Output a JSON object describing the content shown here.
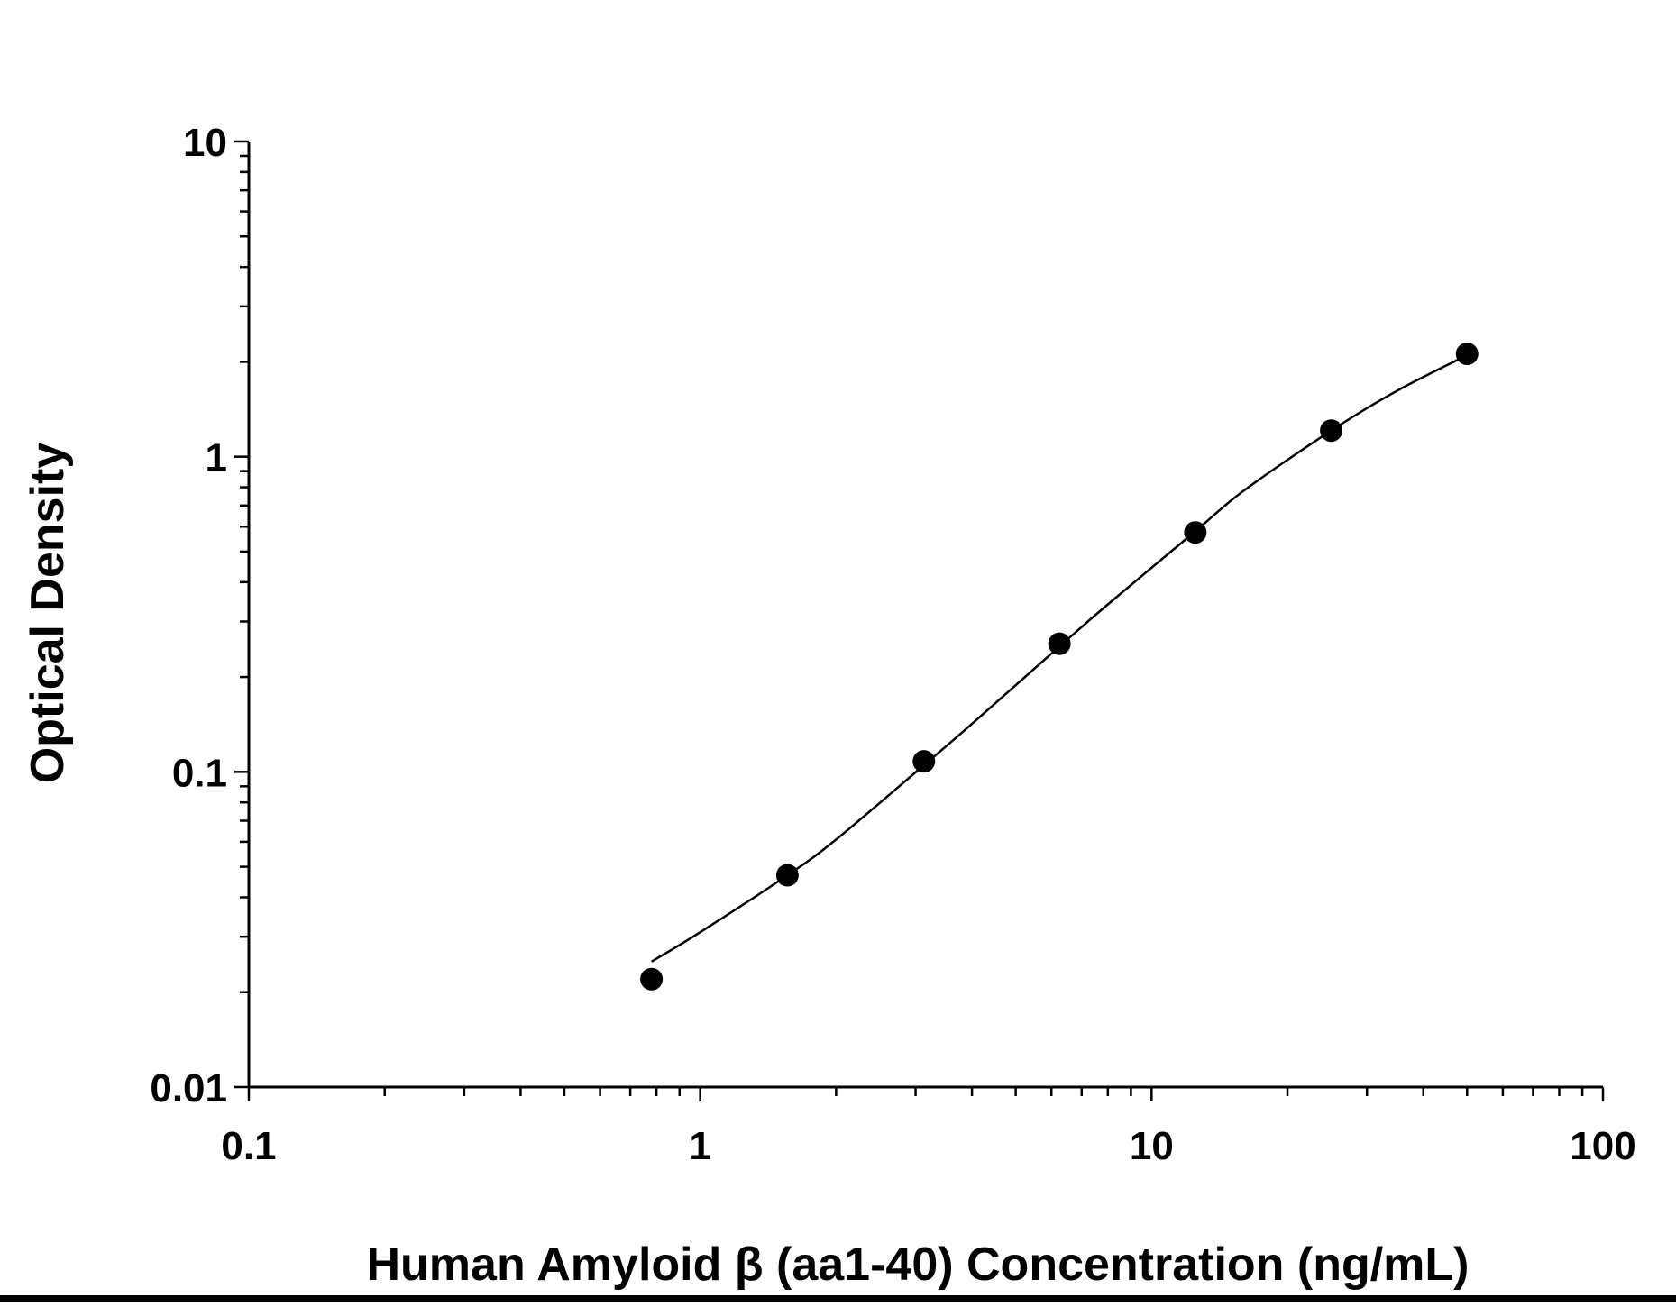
{
  "chart_data": {
    "type": "scatter",
    "title": "",
    "xlabel": "Human Amyloid β (aa1-40) Concentration (ng/mL)",
    "ylabel": "Optical Density",
    "x_scale": "log",
    "y_scale": "log",
    "xlim": [
      0.1,
      100
    ],
    "ylim": [
      0.01,
      10
    ],
    "x_ticks": [
      "0.1",
      "1",
      "10",
      "100"
    ],
    "y_ticks": [
      "0.01",
      "0.1",
      "1",
      "10"
    ],
    "grid": false,
    "legend": "none",
    "series": [
      {
        "x": [
          0.78,
          1.56,
          3.13,
          6.25,
          12.5,
          25,
          50
        ],
        "y": [
          0.022,
          0.047,
          0.108,
          0.255,
          0.575,
          1.21,
          2.12
        ]
      }
    ],
    "fit_curve": {
      "type": "line",
      "x": [
        0.78,
        1.0,
        1.56,
        2.0,
        3.13,
        4.0,
        6.25,
        8.0,
        12.5,
        16.0,
        25,
        35,
        50
      ],
      "y": [
        0.025,
        0.031,
        0.047,
        0.061,
        0.105,
        0.142,
        0.25,
        0.34,
        0.58,
        0.78,
        1.21,
        1.62,
        2.1
      ]
    },
    "colors": {
      "points": "#000000",
      "line": "#000000",
      "axis": "#000000"
    }
  }
}
